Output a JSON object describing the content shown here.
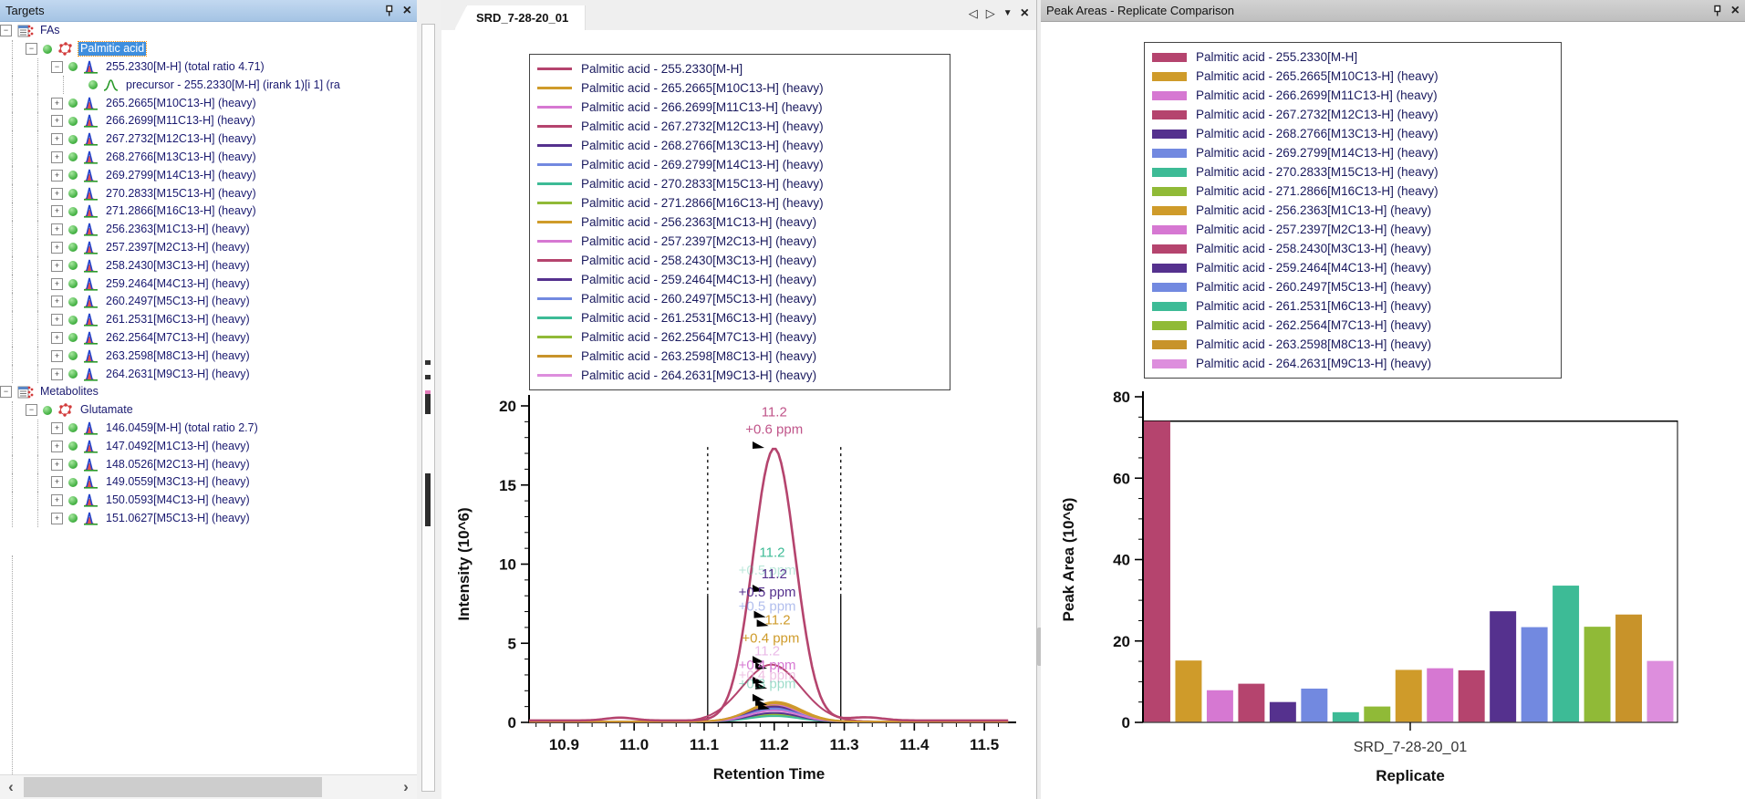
{
  "targets_panel": {
    "title": "Targets",
    "tree": [
      {
        "label": "FAs",
        "indent": 0,
        "expand": "open",
        "dot": false,
        "icon": "document-molecule",
        "selected": false
      },
      {
        "label": "Palmitic acid",
        "indent": 1,
        "expand": "open",
        "dot": true,
        "icon": "molecule",
        "selected": true
      },
      {
        "label": "255.2330[M-H] (total ratio 4.71)",
        "indent": 2,
        "expand": "open",
        "dot": true,
        "icon": "chromatogram",
        "selected": false
      },
      {
        "label": "precursor - 255.2330[M-H] (irank 1)[i 1] (ra",
        "indent": 3,
        "expand": "leaf",
        "dot": true,
        "icon": "precursor-peak",
        "selected": false
      },
      {
        "label": "265.2665[M10C13-H] (heavy)",
        "indent": 2,
        "expand": "closed",
        "dot": true,
        "icon": "chromatogram",
        "selected": false
      },
      {
        "label": "266.2699[M11C13-H] (heavy)",
        "indent": 2,
        "expand": "closed",
        "dot": true,
        "icon": "chromatogram",
        "selected": false
      },
      {
        "label": "267.2732[M12C13-H] (heavy)",
        "indent": 2,
        "expand": "closed",
        "dot": true,
        "icon": "chromatogram",
        "selected": false
      },
      {
        "label": "268.2766[M13C13-H] (heavy)",
        "indent": 2,
        "expand": "closed",
        "dot": true,
        "icon": "chromatogram",
        "selected": false
      },
      {
        "label": "269.2799[M14C13-H] (heavy)",
        "indent": 2,
        "expand": "closed",
        "dot": true,
        "icon": "chromatogram",
        "selected": false
      },
      {
        "label": "270.2833[M15C13-H] (heavy)",
        "indent": 2,
        "expand": "closed",
        "dot": true,
        "icon": "chromatogram",
        "selected": false
      },
      {
        "label": "271.2866[M16C13-H] (heavy)",
        "indent": 2,
        "expand": "closed",
        "dot": true,
        "icon": "chromatogram",
        "selected": false
      },
      {
        "label": "256.2363[M1C13-H] (heavy)",
        "indent": 2,
        "expand": "closed",
        "dot": true,
        "icon": "chromatogram",
        "selected": false
      },
      {
        "label": "257.2397[M2C13-H] (heavy)",
        "indent": 2,
        "expand": "closed",
        "dot": true,
        "icon": "chromatogram",
        "selected": false
      },
      {
        "label": "258.2430[M3C13-H] (heavy)",
        "indent": 2,
        "expand": "closed",
        "dot": true,
        "icon": "chromatogram",
        "selected": false
      },
      {
        "label": "259.2464[M4C13-H] (heavy)",
        "indent": 2,
        "expand": "closed",
        "dot": true,
        "icon": "chromatogram",
        "selected": false
      },
      {
        "label": "260.2497[M5C13-H] (heavy)",
        "indent": 2,
        "expand": "closed",
        "dot": true,
        "icon": "chromatogram",
        "selected": false
      },
      {
        "label": "261.2531[M6C13-H] (heavy)",
        "indent": 2,
        "expand": "closed",
        "dot": true,
        "icon": "chromatogram",
        "selected": false
      },
      {
        "label": "262.2564[M7C13-H] (heavy)",
        "indent": 2,
        "expand": "closed",
        "dot": true,
        "icon": "chromatogram",
        "selected": false
      },
      {
        "label": "263.2598[M8C13-H] (heavy)",
        "indent": 2,
        "expand": "closed",
        "dot": true,
        "icon": "chromatogram",
        "selected": false
      },
      {
        "label": "264.2631[M9C13-H] (heavy)",
        "indent": 2,
        "expand": "closed",
        "dot": true,
        "icon": "chromatogram",
        "selected": false
      },
      {
        "label": "Metabolites",
        "indent": 0,
        "expand": "open",
        "dot": false,
        "icon": "document-molecule",
        "selected": false
      },
      {
        "label": "Glutamate",
        "indent": 1,
        "expand": "open",
        "dot": true,
        "icon": "molecule",
        "selected": false
      },
      {
        "label": "146.0459[M-H] (total ratio 2.7)",
        "indent": 2,
        "expand": "closed",
        "dot": true,
        "icon": "chromatogram",
        "selected": false
      },
      {
        "label": "147.0492[M1C13-H] (heavy)",
        "indent": 2,
        "expand": "closed",
        "dot": true,
        "icon": "chromatogram",
        "selected": false
      },
      {
        "label": "148.0526[M2C13-H] (heavy)",
        "indent": 2,
        "expand": "closed",
        "dot": true,
        "icon": "chromatogram",
        "selected": false
      },
      {
        "label": "149.0559[M3C13-H] (heavy)",
        "indent": 2,
        "expand": "closed",
        "dot": true,
        "icon": "chromatogram",
        "selected": false
      },
      {
        "label": "150.0593[M4C13-H] (heavy)",
        "indent": 2,
        "expand": "closed",
        "dot": true,
        "icon": "chromatogram",
        "selected": false
      },
      {
        "label": "151.0627[M5C13-H] (heavy)",
        "indent": 2,
        "expand": "closed",
        "dot": true,
        "icon": "chromatogram",
        "selected": false
      }
    ]
  },
  "chromatogram_panel": {
    "tab": "SRD_7-28-20_01",
    "chart_data": {
      "type": "line",
      "xlabel": "Retention Time",
      "ylabel": "Intensity (10^6)",
      "xlim": [
        10.85,
        11.535
      ],
      "ylim": [
        0,
        20
      ],
      "x_ticks": [
        10.9,
        11.0,
        11.1,
        11.2,
        11.3,
        11.4,
        11.5
      ],
      "y_ticks": [
        0,
        5,
        10,
        15,
        20
      ],
      "integration_boundaries": [
        11.105,
        11.295
      ],
      "series": [
        {
          "name": "Palmitic acid - 255.2330[M-H]",
          "color": "#b5446e",
          "rt": 11.2,
          "height": 17.2,
          "sigma": 0.03
        },
        {
          "name": "Palmitic acid - 265.2665[M10C13-H] (heavy)",
          "color": "#cf9b2a",
          "rt": 11.2,
          "height": 1.15,
          "sigma": 0.035
        },
        {
          "name": "Palmitic acid - 266.2699[M11C13-H] (heavy)",
          "color": "#d678d2",
          "rt": 11.2,
          "height": 0.7,
          "sigma": 0.035
        },
        {
          "name": "Palmitic acid - 267.2732[M12C13-H] (heavy)",
          "color": "#b5446e",
          "rt": 11.196,
          "height": 3.6,
          "sigma": 0.042
        },
        {
          "name": "Palmitic acid - 268.2766[M13C13-H] (heavy)",
          "color": "#55318e",
          "rt": 11.2,
          "height": 0.55,
          "sigma": 0.035
        },
        {
          "name": "Palmitic acid - 269.2799[M14C13-H] (heavy)",
          "color": "#7289e0",
          "rt": 11.2,
          "height": 0.8,
          "sigma": 0.035
        },
        {
          "name": "Palmitic acid - 270.2833[M15C13-H] (heavy)",
          "color": "#3dbb96",
          "rt": 11.2,
          "height": 0.35,
          "sigma": 0.035
        },
        {
          "name": "Palmitic acid - 271.2866[M16C13-H] (heavy)",
          "color": "#90ba37",
          "rt": 11.2,
          "height": 0.45,
          "sigma": 0.035
        },
        {
          "name": "Palmitic acid - 256.2363[M1C13-H] (heavy)",
          "color": "#cf9b2a",
          "rt": 11.202,
          "height": 1.25,
          "sigma": 0.036
        },
        {
          "name": "Palmitic acid - 257.2397[M2C13-H] (heavy)",
          "color": "#d678d2",
          "rt": 11.198,
          "height": 1.1,
          "sigma": 0.035
        },
        {
          "name": "Palmitic acid - 258.2430[M3C13-H] (heavy)",
          "color": "#b5446e",
          "rt": 11.2,
          "height": 1.2,
          "sigma": 0.035
        },
        {
          "name": "Palmitic acid - 259.2464[M4C13-H] (heavy)",
          "color": "#55318e",
          "rt": 11.2,
          "height": 0.95,
          "sigma": 0.035
        },
        {
          "name": "Palmitic acid - 260.2497[M5C13-H] (heavy)",
          "color": "#7289e0",
          "rt": 11.2,
          "height": 0.85,
          "sigma": 0.035
        },
        {
          "name": "Palmitic acid - 261.2531[M6C13-H] (heavy)",
          "color": "#3dbb96",
          "rt": 11.205,
          "height": 0.9,
          "sigma": 0.036
        },
        {
          "name": "Palmitic acid - 262.2564[M7C13-H] (heavy)",
          "color": "#90ba37",
          "rt": 11.2,
          "height": 0.75,
          "sigma": 0.035
        },
        {
          "name": "Palmitic acid - 263.2598[M8C13-H] (heavy)",
          "color": "#c8932a",
          "rt": 11.2,
          "height": 1.0,
          "sigma": 0.035
        },
        {
          "name": "Palmitic acid - 264.2631[M9C13-H] (heavy)",
          "color": "#dd8edd",
          "rt": 11.2,
          "height": 0.8,
          "sigma": 0.035
        }
      ],
      "annotations": [
        {
          "text": "11.2",
          "rt": 11.2,
          "y": 19.35,
          "color": "#c0558a",
          "opacity": 1
        },
        {
          "text": "+0.6 ppm",
          "rt": 11.2,
          "y": 18.25,
          "color": "#c0558a",
          "opacity": 1
        },
        {
          "text": "11.2",
          "rt": 11.197,
          "y": 10.45,
          "color": "#3dbb96",
          "opacity": 1
        },
        {
          "text": "+0.5 ppm",
          "rt": 11.19,
          "y": 9.35,
          "color": "#3dbb96",
          "opacity": 0.35
        },
        {
          "text": "11.2",
          "rt": 11.2,
          "y": 9.1,
          "color": "#55318e",
          "opacity": 1
        },
        {
          "text": "+0.5 ppm",
          "rt": 11.19,
          "y": 7.95,
          "color": "#55318e",
          "opacity": 1
        },
        {
          "text": "+0.5 ppm",
          "rt": 11.19,
          "y": 7.05,
          "color": "#7289e0",
          "opacity": 0.55
        },
        {
          "text": "11.2",
          "rt": 11.205,
          "y": 6.2,
          "color": "#cf9b2a",
          "opacity": 1
        },
        {
          "text": "+0.4 ppm",
          "rt": 11.195,
          "y": 5.05,
          "color": "#cf9b2a",
          "opacity": 1
        },
        {
          "text": "11.2",
          "rt": 11.19,
          "y": 4.25,
          "color": "#d678d2",
          "opacity": 0.5
        },
        {
          "text": "+0.4 ppm",
          "rt": 11.19,
          "y": 3.35,
          "color": "#d678d2",
          "opacity": 1
        },
        {
          "text": "+0.4 ppm",
          "rt": 11.19,
          "y": 2.7,
          "color": "#e8a8d8",
          "opacity": 0.7
        },
        {
          "text": "+0.3 ppm",
          "rt": 11.19,
          "y": 2.15,
          "color": "#3dbb96",
          "opacity": 0.5
        }
      ],
      "peak_markers": [
        {
          "rt": 11.186,
          "y": 17.35
        },
        {
          "rt": 11.186,
          "y": 8.3
        },
        {
          "rt": 11.188,
          "y": 6.65
        },
        {
          "rt": 11.192,
          "y": 6.1
        },
        {
          "rt": 11.186,
          "y": 3.8
        },
        {
          "rt": 11.19,
          "y": 3.4
        },
        {
          "rt": 11.186,
          "y": 2.5
        },
        {
          "rt": 11.19,
          "y": 2.15
        },
        {
          "rt": 11.186,
          "y": 1.4
        },
        {
          "rt": 11.19,
          "y": 1.1
        },
        {
          "rt": 11.194,
          "y": 0.85
        }
      ]
    }
  },
  "peak_areas_panel": {
    "title": "Peak Areas - Replicate Comparison",
    "chart_data": {
      "type": "bar",
      "xlabel": "Replicate",
      "ylabel": "Peak Area (10^6)",
      "ylim": [
        0,
        80
      ],
      "y_ticks": [
        0,
        20,
        40,
        60,
        80
      ],
      "categories": [
        "SRD_7-28-20_01"
      ],
      "pane_top": 74,
      "series": [
        {
          "name": "Palmitic acid - 255.2330[M-H]",
          "color": "#b5446e",
          "value": 74
        },
        {
          "name": "Palmitic acid - 265.2665[M10C13-H] (heavy)",
          "color": "#cf9b2a",
          "value": 15.2
        },
        {
          "name": "Palmitic acid - 266.2699[M11C13-H] (heavy)",
          "color": "#d678d2",
          "value": 7.9
        },
        {
          "name": "Palmitic acid - 267.2732[M12C13-H] (heavy)",
          "color": "#b5446e",
          "value": 9.5
        },
        {
          "name": "Palmitic acid - 268.2766[M13C13-H] (heavy)",
          "color": "#55318e",
          "value": 5.0
        },
        {
          "name": "Palmitic acid - 269.2799[M14C13-H] (heavy)",
          "color": "#7289e0",
          "value": 8.3
        },
        {
          "name": "Palmitic acid - 270.2833[M15C13-H] (heavy)",
          "color": "#3dbb96",
          "value": 2.5
        },
        {
          "name": "Palmitic acid - 271.2866[M16C13-H] (heavy)",
          "color": "#90ba37",
          "value": 3.9
        },
        {
          "name": "Palmitic acid - 256.2363[M1C13-H] (heavy)",
          "color": "#cf9b2a",
          "value": 12.9
        },
        {
          "name": "Palmitic acid - 257.2397[M2C13-H] (heavy)",
          "color": "#d678d2",
          "value": 13.3
        },
        {
          "name": "Palmitic acid - 258.2430[M3C13-H] (heavy)",
          "color": "#b5446e",
          "value": 12.8
        },
        {
          "name": "Palmitic acid - 259.2464[M4C13-H] (heavy)",
          "color": "#55318e",
          "value": 27.3
        },
        {
          "name": "Palmitic acid - 260.2497[M5C13-H] (heavy)",
          "color": "#7289e0",
          "value": 23.4
        },
        {
          "name": "Palmitic acid - 261.2531[M6C13-H] (heavy)",
          "color": "#3dbb96",
          "value": 33.6
        },
        {
          "name": "Palmitic acid - 262.2564[M7C13-H] (heavy)",
          "color": "#90ba37",
          "value": 23.5
        },
        {
          "name": "Palmitic acid - 263.2598[M8C13-H] (heavy)",
          "color": "#c8932a",
          "value": 26.5
        },
        {
          "name": "Palmitic acid - 264.2631[M9C13-H] (heavy)",
          "color": "#dd8edd",
          "value": 15.1
        }
      ]
    }
  },
  "colors": {
    "selection_background": "#3e8ede",
    "selection_focus_outline": "#ff8c00",
    "targets_titlebar": "#aac7e6",
    "peaks_titlebar": "#c6c6c6",
    "tree_text": "#1a1a70"
  }
}
